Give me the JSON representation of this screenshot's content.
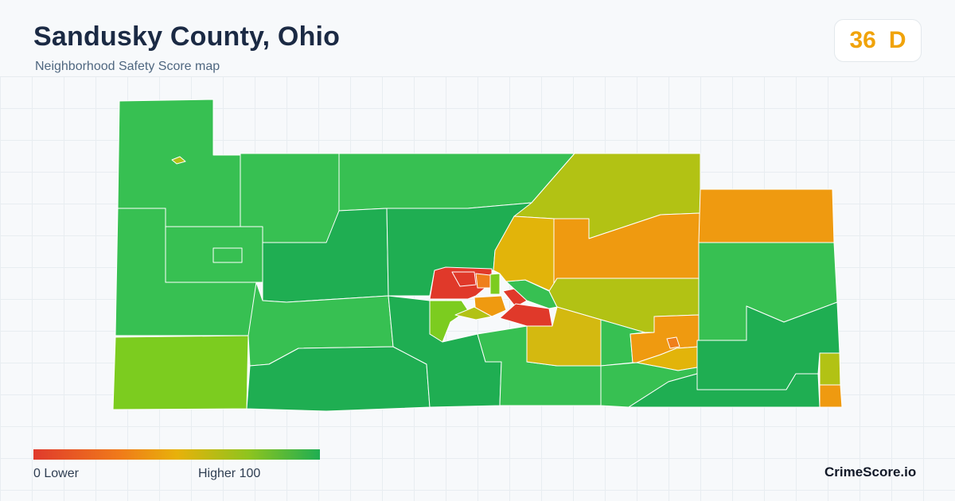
{
  "header": {
    "title": "Sandusky County, Ohio",
    "subtitle": "Neighborhood Safety Score map"
  },
  "score": {
    "value": "36",
    "grade": "D",
    "color": "#f0a30a"
  },
  "legend": {
    "min_label": "0  Lower",
    "max_label": "Higher  100",
    "scale_min": 0,
    "scale_max": 100,
    "colors": [
      "#e03a2c",
      "#f07a1a",
      "#e8b10a",
      "#8fc41e",
      "#1fae52"
    ]
  },
  "brand": "CrimeScore.io",
  "map": {
    "palette": {
      "dark_green": "#1fae52",
      "green": "#37c052",
      "lime": "#7ccc1f",
      "yellow_green": "#b2c214",
      "yellow": "#e2b40a",
      "orange": "#ef9a10",
      "dark_orange": "#ef7f1c",
      "red": "#e0392a"
    }
  }
}
